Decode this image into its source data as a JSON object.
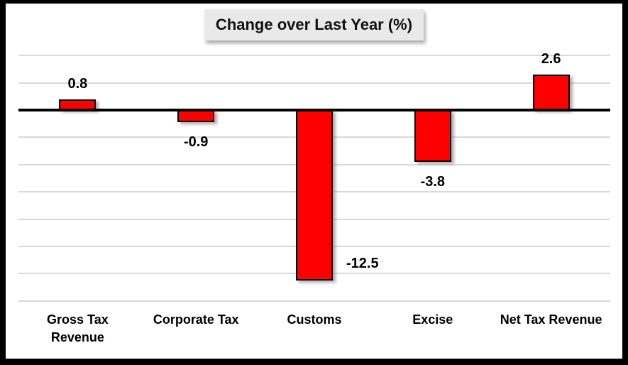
{
  "chart_data": {
    "type": "bar",
    "title": "Change over Last Year (%)",
    "categories": [
      "Gross Tax\nRevenue",
      "Corporate Tax",
      "Customs",
      "Excise",
      "Net Tax Revenue"
    ],
    "values": [
      0.8,
      -0.9,
      -12.5,
      -3.8,
      2.6
    ],
    "data_labels": [
      "0.8",
      "-0.9",
      "-12.5",
      "-3.8",
      "2.6"
    ],
    "label_placements": [
      "above",
      "below",
      "right-of-end",
      "below",
      "above"
    ],
    "xlabel": "",
    "ylabel": "",
    "ylim": [
      -14,
      4
    ],
    "gridline_values": [
      4,
      2,
      -2,
      -4,
      -6,
      -8,
      -10,
      -12,
      -14
    ],
    "grid": true,
    "legend": "none",
    "colors": {
      "bar_fill": "#ff0000",
      "bar_border": "#000000",
      "gridline": "#d9d9d9",
      "axis_line": "#000000",
      "title_background": "#e9e9e9",
      "text": "#000000",
      "frame_border": "#000000",
      "background": "#ffffff"
    }
  }
}
